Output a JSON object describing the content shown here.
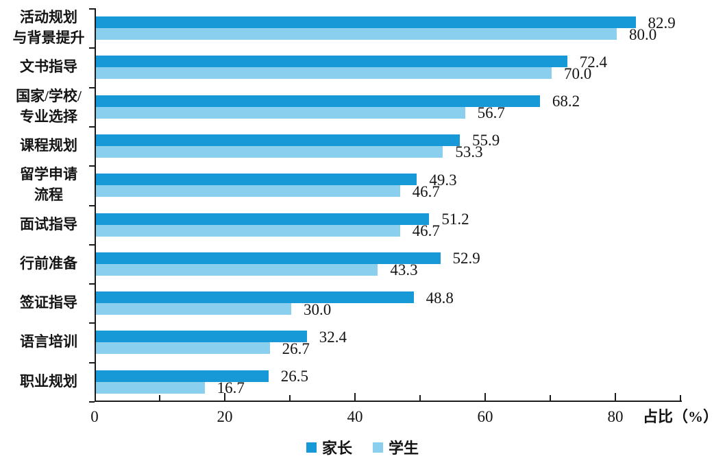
{
  "chart_data": {
    "type": "bar",
    "orientation": "horizontal",
    "title": "",
    "xlabel": "占比（%）",
    "xlim": [
      0,
      90
    ],
    "x_ticks": [
      0,
      20,
      40,
      60,
      80
    ],
    "x_minor_tick_step": 10,
    "grid": false,
    "legend_position": "bottom-center",
    "categories": [
      {
        "label_lines": [
          "活动规划",
          "与背景提升"
        ]
      },
      {
        "label_lines": [
          "文书指导"
        ]
      },
      {
        "label_lines": [
          "国家/学校/",
          "专业选择"
        ]
      },
      {
        "label_lines": [
          "课程规划"
        ]
      },
      {
        "label_lines": [
          "留学申请",
          "流程"
        ]
      },
      {
        "label_lines": [
          "面试指导"
        ]
      },
      {
        "label_lines": [
          "行前准备"
        ]
      },
      {
        "label_lines": [
          "签证指导"
        ]
      },
      {
        "label_lines": [
          "语言培训"
        ]
      },
      {
        "label_lines": [
          "职业规划"
        ]
      }
    ],
    "series": [
      {
        "name": "家长",
        "color": "#1699d6",
        "values": [
          82.9,
          72.4,
          68.2,
          55.9,
          49.3,
          51.2,
          52.9,
          48.8,
          32.4,
          26.5
        ]
      },
      {
        "name": "学生",
        "color": "#8bcfef",
        "values": [
          80.0,
          70.0,
          56.7,
          53.3,
          46.7,
          46.7,
          43.3,
          30.0,
          26.7,
          16.7
        ]
      }
    ],
    "value_label_decimals": 1,
    "axis_color": "#1a1a1a",
    "text_color": "#141414"
  }
}
